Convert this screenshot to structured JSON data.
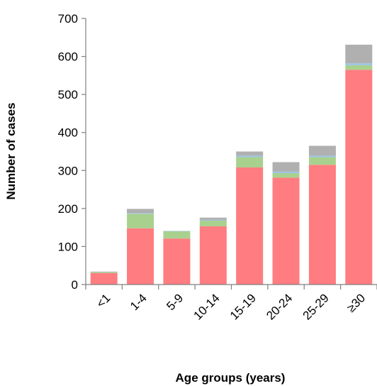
{
  "chart_data": {
    "type": "bar",
    "stacked": true,
    "title": "",
    "xlabel": "Age groups (years)",
    "ylabel": "Number of cases",
    "ylim": [
      0,
      700
    ],
    "yticks": [
      0,
      100,
      200,
      300,
      400,
      500,
      600,
      700
    ],
    "grid": false,
    "legend": "none",
    "categories": [
      "<1",
      "1-4",
      "5-9",
      "10-14",
      "15-19",
      "20-24",
      "25-29",
      "≥30"
    ],
    "series": [
      {
        "color": "#ff7c80",
        "values": [
          30,
          148,
          121,
          153,
          308,
          281,
          315,
          565
        ]
      },
      {
        "color": "#a9d18e",
        "values": [
          2,
          38,
          19,
          15,
          27,
          12,
          20,
          12
        ]
      },
      {
        "color": "#9dc3e6",
        "values": [
          0,
          2,
          1,
          2,
          4,
          4,
          4,
          5
        ]
      },
      {
        "color": "#b0b0b0",
        "values": [
          2,
          11,
          0,
          6,
          11,
          25,
          26,
          49
        ]
      }
    ]
  }
}
